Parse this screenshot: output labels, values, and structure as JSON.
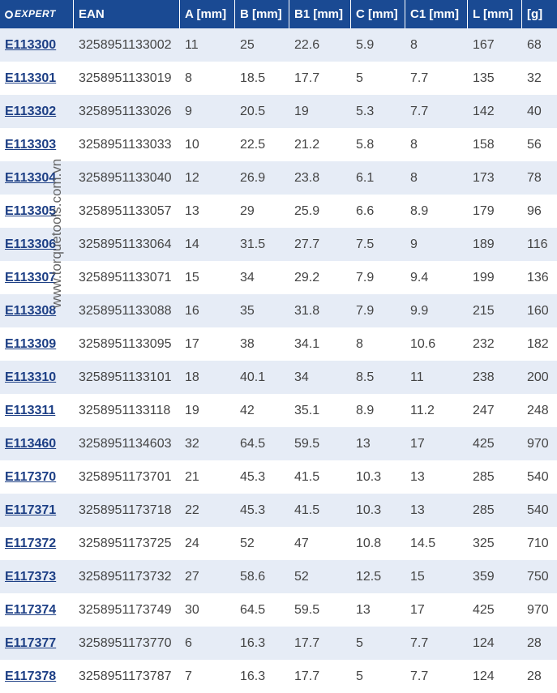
{
  "header": {
    "logo_text": "EXPERT",
    "columns": [
      "EAN",
      "A [mm]",
      "B [mm]",
      "B1 [mm]",
      "C [mm]",
      "C1 [mm]",
      "L [mm]",
      "[g]"
    ]
  },
  "watermark": "www.torquetools.com.vn",
  "rows": [
    [
      "E113300",
      "3258951133002",
      "11",
      "25",
      "22.6",
      "5.9",
      "8",
      "167",
      "68"
    ],
    [
      "E113301",
      "3258951133019",
      "8",
      "18.5",
      "17.7",
      "5",
      "7.7",
      "135",
      "32"
    ],
    [
      "E113302",
      "3258951133026",
      "9",
      "20.5",
      "19",
      "5.3",
      "7.7",
      "142",
      "40"
    ],
    [
      "E113303",
      "3258951133033",
      "10",
      "22.5",
      "21.2",
      "5.8",
      "8",
      "158",
      "56"
    ],
    [
      "E113304",
      "3258951133040",
      "12",
      "26.9",
      "23.8",
      "6.1",
      "8",
      "173",
      "78"
    ],
    [
      "E113305",
      "3258951133057",
      "13",
      "29",
      "25.9",
      "6.6",
      "8.9",
      "179",
      "96"
    ],
    [
      "E113306",
      "3258951133064",
      "14",
      "31.5",
      "27.7",
      "7.5",
      "9",
      "189",
      "116"
    ],
    [
      "E113307",
      "3258951133071",
      "15",
      "34",
      "29.2",
      "7.9",
      "9.4",
      "199",
      "136"
    ],
    [
      "E113308",
      "3258951133088",
      "16",
      "35",
      "31.8",
      "7.9",
      "9.9",
      "215",
      "160"
    ],
    [
      "E113309",
      "3258951133095",
      "17",
      "38",
      "34.1",
      "8",
      "10.6",
      "232",
      "182"
    ],
    [
      "E113310",
      "3258951133101",
      "18",
      "40.1",
      "34",
      "8.5",
      "11",
      "238",
      "200"
    ],
    [
      "E113311",
      "3258951133118",
      "19",
      "42",
      "35.1",
      "8.9",
      "11.2",
      "247",
      "248"
    ],
    [
      "E113460",
      "3258951134603",
      "32",
      "64.5",
      "59.5",
      "13",
      "17",
      "425",
      "970"
    ],
    [
      "E117370",
      "3258951173701",
      "21",
      "45.3",
      "41.5",
      "10.3",
      "13",
      "285",
      "540"
    ],
    [
      "E117371",
      "3258951173718",
      "22",
      "45.3",
      "41.5",
      "10.3",
      "13",
      "285",
      "540"
    ],
    [
      "E117372",
      "3258951173725",
      "24",
      "52",
      "47",
      "10.8",
      "14.5",
      "325",
      "710"
    ],
    [
      "E117373",
      "3258951173732",
      "27",
      "58.6",
      "52",
      "12.5",
      "15",
      "359",
      "750"
    ],
    [
      "E117374",
      "3258951173749",
      "30",
      "64.5",
      "59.5",
      "13",
      "17",
      "425",
      "970"
    ],
    [
      "E117377",
      "3258951173770",
      "6",
      "16.3",
      "17.7",
      "5",
      "7.7",
      "124",
      "28"
    ],
    [
      "E117378",
      "3258951173787",
      "7",
      "16.3",
      "17.7",
      "5",
      "7.7",
      "124",
      "28"
    ]
  ]
}
